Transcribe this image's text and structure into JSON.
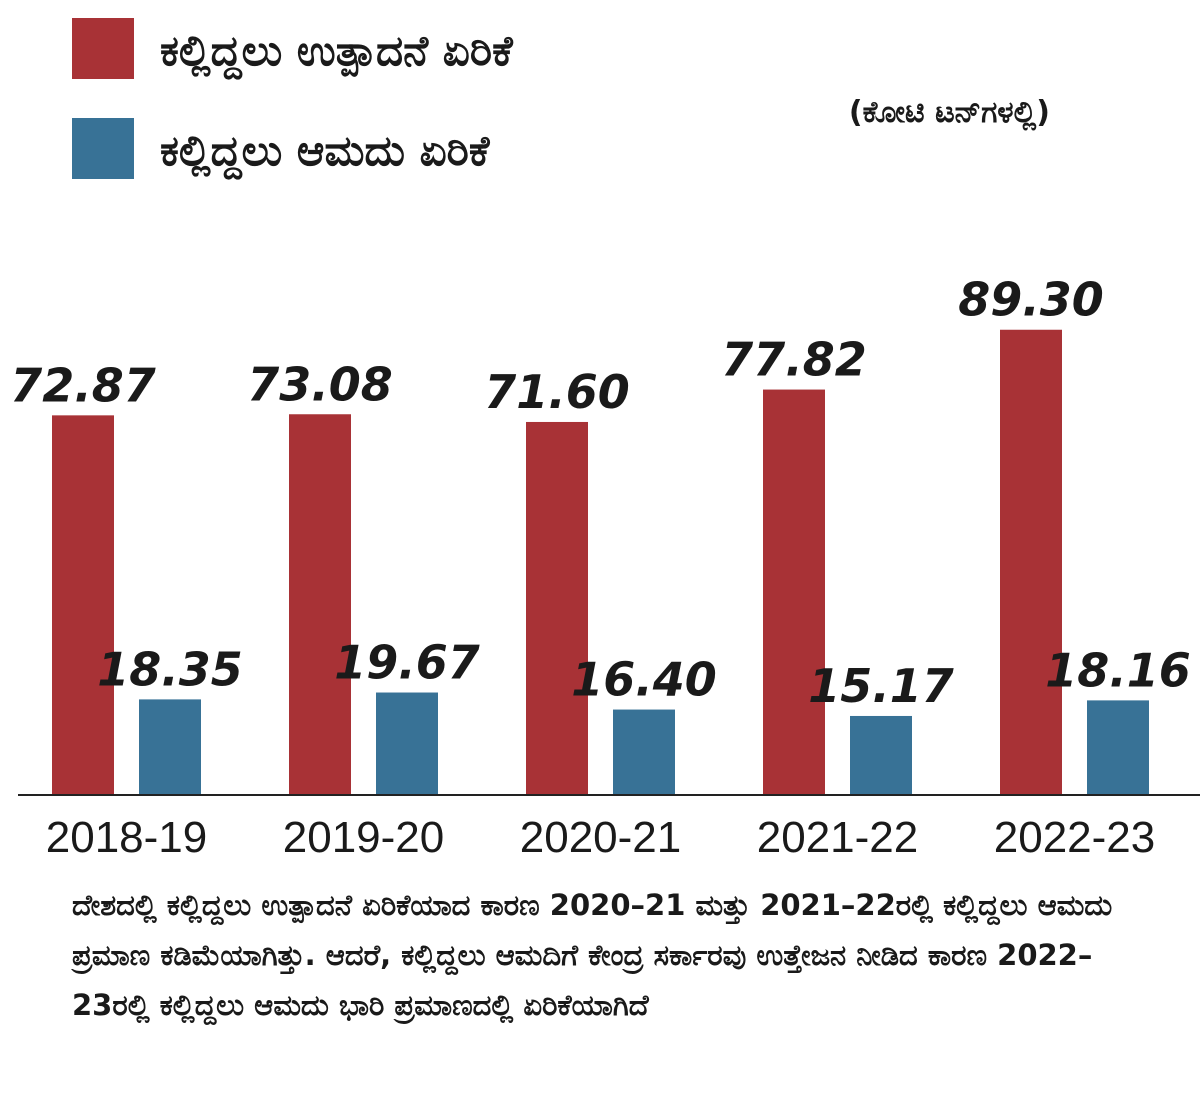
{
  "chart_data": {
    "type": "bar",
    "categories": [
      "2018-19",
      "2019-20",
      "2020-21",
      "2021-22",
      "2022-23"
    ],
    "series": [
      {
        "name": "ಕಲ್ಲಿದ್ದಲು ಉತ್ಪಾದನೆ ಏರಿಕೆ",
        "color": "#a83236",
        "values": [
          72.87,
          73.08,
          71.6,
          77.82,
          89.3
        ],
        "labels": [
          "72.87",
          "73.08",
          "71.60",
          "77.82",
          "89.30"
        ]
      },
      {
        "name": "ಕಲ್ಲಿದ್ದಲು ಆಮದು ಏರಿಕೆ",
        "color": "#387296",
        "values": [
          18.35,
          19.67,
          16.4,
          15.17,
          18.16
        ],
        "labels": [
          "18.35",
          "19.67",
          "16.40",
          "15.17",
          "18.16"
        ]
      }
    ],
    "unit_label": "(ಕೋಟಿ ಟನ್‌ಗಳಲ್ಲಿ)",
    "ylim": [
      0,
      100
    ],
    "grid": false,
    "legend_position": "top-left"
  },
  "caption": "ದೇಶದಲ್ಲಿ ಕಲ್ಲಿದ್ದಲು ಉತ್ಪಾದನೆ ಏರಿಕೆಯಾದ ಕಾರಣ 2020–21 ಮತ್ತು 2021–22ರಲ್ಲಿ ಕಲ್ಲಿದ್ದಲು ಆಮದು ಪ್ರಮಾಣ ಕಡಿಮೆಯಾಗಿತ್ತು. ಆದರೆ, ಕಲ್ಲಿದ್ದಲು ಆಮದಿಗೆ ಕೇಂದ್ರ ಸರ್ಕಾರವು ಉತ್ತೇಜನ ನೀಡಿದ ಕಾರಣ 2022–23ರಲ್ಲಿ ಕಲ್ಲಿದ್ದಲು ಆಮದು ಭಾರಿ ಪ್ರಮಾಣದಲ್ಲಿ ಏರಿಕೆಯಾಗಿದೆ"
}
